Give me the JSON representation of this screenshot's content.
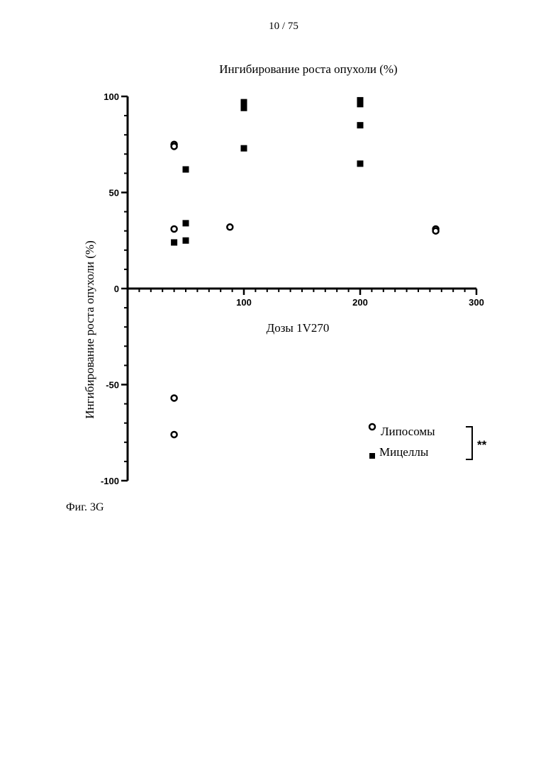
{
  "page_number": "10 / 75",
  "figure_caption": "Фиг. 3G",
  "chart_data": {
    "type": "scatter",
    "title": "Ингибирование роста опухоли (%)",
    "xlabel": "Дозы 1V270",
    "ylabel": "Ингибирование роста опухоли (%)",
    "xlim": [
      0,
      300
    ],
    "ylim": [
      -100,
      100
    ],
    "x_ticks": [
      100,
      200,
      300
    ],
    "y_ticks": [
      100,
      50,
      0,
      -50,
      -100
    ],
    "x_tick_labels": [
      "100",
      "200",
      "300"
    ],
    "y_tick_labels": [
      "100",
      "50",
      "0",
      "-50",
      "-100"
    ],
    "grid": false,
    "legend_position": "bottom-right",
    "series": [
      {
        "name": "Липосомы",
        "marker": "open-circle",
        "color": "#000000",
        "points": [
          [
            40,
            75
          ],
          [
            40,
            74
          ],
          [
            40,
            31
          ],
          [
            88,
            32
          ],
          [
            265,
            31
          ],
          [
            265,
            30
          ],
          [
            40,
            -57
          ],
          [
            40,
            -76
          ]
        ]
      },
      {
        "name": "Мицеллы",
        "marker": "filled-square",
        "color": "#000000",
        "points": [
          [
            40,
            24
          ],
          [
            50,
            62
          ],
          [
            50,
            34
          ],
          [
            50,
            25
          ],
          [
            100,
            97
          ],
          [
            100,
            94
          ],
          [
            100,
            73
          ],
          [
            200,
            98
          ],
          [
            200,
            96
          ],
          [
            200,
            85
          ],
          [
            200,
            65
          ]
        ]
      }
    ],
    "annotation": "**"
  }
}
